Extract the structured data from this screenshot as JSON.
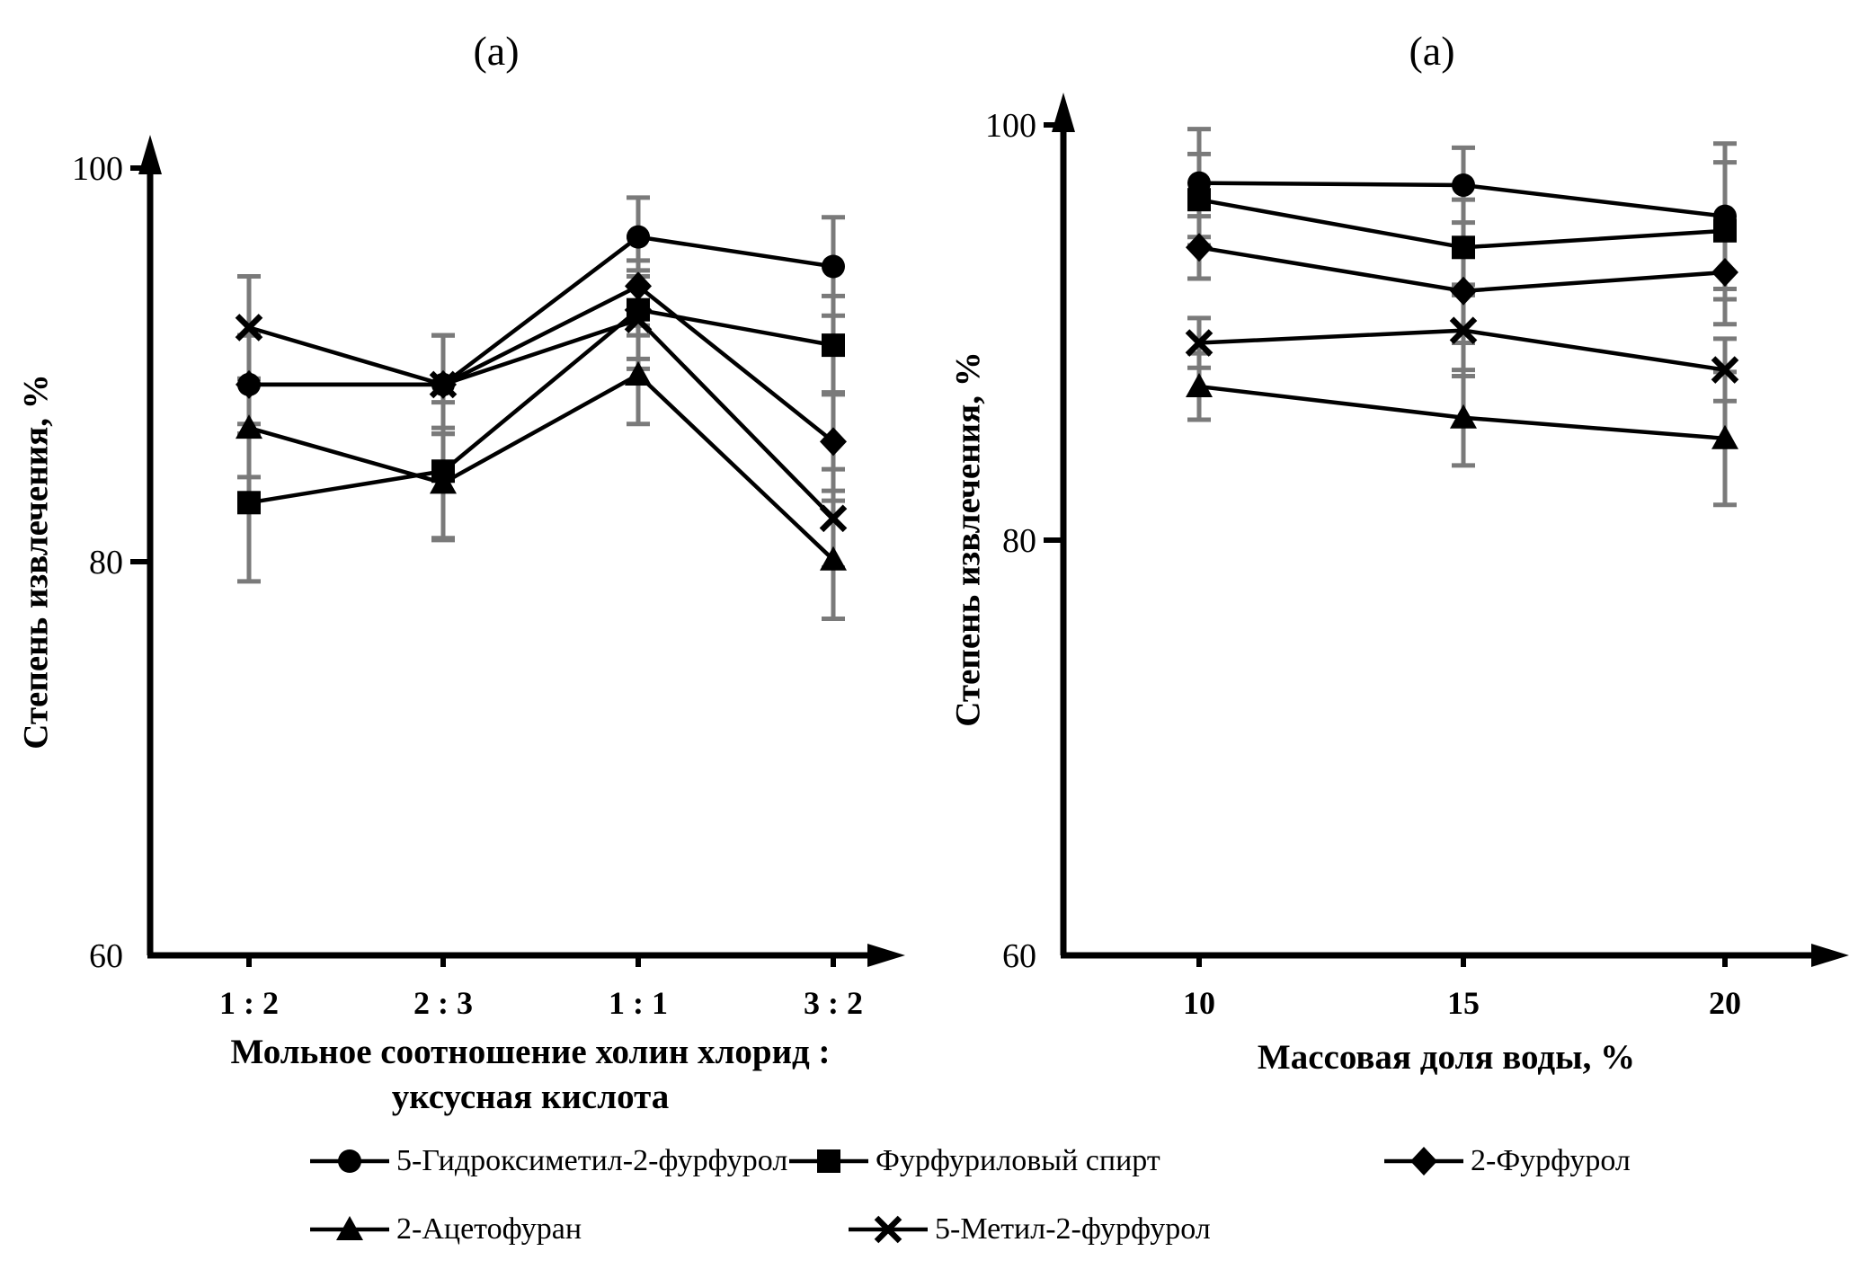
{
  "figure": {
    "background": "#ffffff",
    "series_color": "#000000",
    "error_bar_color": "#7a7a7a",
    "axis_color": "#000000"
  },
  "chart_data": [
    {
      "type": "line",
      "title": "(a)",
      "ylabel": "Степень извлечения, %",
      "xlabel_line1": "Мольное соотношение холин хлорид :",
      "xlabel_line2": "уксусная кислота",
      "categories": [
        "1 : 2",
        "2 : 3",
        "1 : 1",
        "3 : 2"
      ],
      "y_axis": {
        "min": 60,
        "max": 100,
        "ticks": [
          60,
          80,
          100
        ]
      },
      "grid": "off",
      "series": [
        {
          "name": "5-Гидроксиметил-2-фурфурол",
          "marker": "circle",
          "values": [
            89,
            89,
            96.5,
            95
          ],
          "errors": [
            2.5,
            2.5,
            2.0,
            2.5
          ]
        },
        {
          "name": "Фурфуриловый спирт",
          "marker": "square",
          "values": [
            83,
            84.6,
            92.8,
            91
          ],
          "errors": [
            4.0,
            3.5,
            2.5,
            2.5
          ]
        },
        {
          "name": "2-Фурфурол",
          "marker": "diamond",
          "values": [
            89,
            89,
            94,
            86.1
          ],
          "errors": [
            2.5,
            2.5,
            2.5,
            2.5
          ]
        },
        {
          "name": "2-Ацетофуран",
          "marker": "triangle",
          "values": [
            86.8,
            84,
            89.5,
            80.1
          ],
          "errors": [
            2.5,
            2.8,
            2.5,
            3.0
          ]
        },
        {
          "name": "5-Метил-2-фурфурол",
          "marker": "x-cross",
          "values": [
            91.9,
            89,
            92.3,
            82.2
          ],
          "errors": [
            2.6,
            2.5,
            2.5,
            2.5
          ]
        }
      ]
    },
    {
      "type": "line",
      "title": "(a)",
      "ylabel": "Степень извлечения, %",
      "xlabel_line1": "Массовая доля воды, %",
      "xlabel_line2": "",
      "categories": [
        "10",
        "15",
        "20"
      ],
      "y_axis": {
        "min": 60,
        "max": 100,
        "ticks": [
          60,
          80,
          100
        ]
      },
      "grid": "off",
      "series": [
        {
          "name": "5-Гидроксиметил-2-фурфурол",
          "marker": "circle",
          "values": [
            97.2,
            97.1,
            95.6
          ],
          "errors": [
            2.6,
            1.8,
            3.5
          ]
        },
        {
          "name": "Фурфуриловый спирт",
          "marker": "square",
          "values": [
            96.4,
            94.1,
            94.9
          ],
          "errors": [
            2.2,
            2.3,
            3.3
          ]
        },
        {
          "name": "2-Фурфурол",
          "marker": "diamond",
          "values": [
            94.1,
            92.0,
            92.9
          ],
          "errors": [
            1.5,
            2.5,
            2.5
          ]
        },
        {
          "name": "2-Ацетофуран",
          "marker": "triangle",
          "values": [
            87.4,
            85.9,
            84.9
          ],
          "errors": [
            1.6,
            2.3,
            3.2
          ]
        },
        {
          "name": "5-Метил-2-фурфурол",
          "marker": "x-cross",
          "values": [
            89.5,
            90.1,
            88.2
          ],
          "errors": [
            1.2,
            2.2,
            1.5
          ]
        }
      ]
    }
  ],
  "legend": {
    "items": [
      {
        "marker": "circle",
        "label": "5-Гидроксиметил-2-фурфурол"
      },
      {
        "marker": "square",
        "label": "Фурфуриловый спирт"
      },
      {
        "marker": "diamond",
        "label": "2-Фурфурол"
      },
      {
        "marker": "triangle",
        "label": "2-Ацетофуран"
      },
      {
        "marker": "x-cross",
        "label": "5-Метил-2-фурфурол"
      }
    ]
  }
}
